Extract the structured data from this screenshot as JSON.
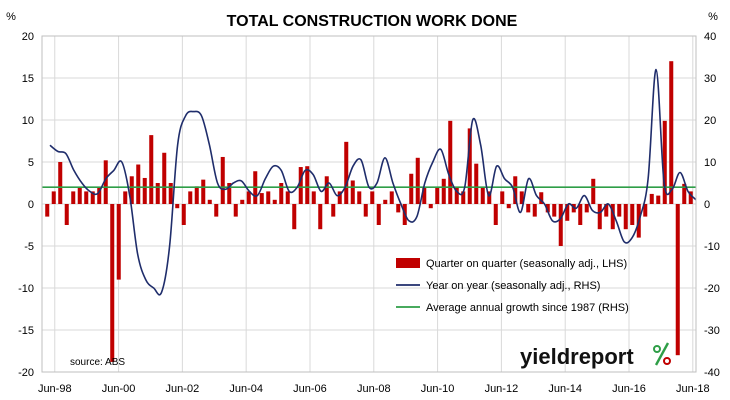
{
  "chart_data": {
    "type": "bar",
    "title": "TOTAL CONSTRUCTION WORK DONE",
    "left_unit": "%",
    "right_unit": "%",
    "ylim_left": [
      -20,
      20
    ],
    "ylim_right": [
      -40,
      40
    ],
    "y_ticks_left": [
      "20",
      "15",
      "10",
      "5",
      "0",
      "-5",
      "-10",
      "-15",
      "-20"
    ],
    "y_ticks_right": [
      "40",
      "30",
      "20",
      "10",
      "0",
      "-10",
      "-20",
      "-30",
      "-40"
    ],
    "x_ticks": [
      "Jun-98",
      "Jun-00",
      "Jun-02",
      "Jun-04",
      "Jun-06",
      "Jun-08",
      "Jun-10",
      "Jun-12",
      "Jun-14",
      "Jun-16",
      "Jun-18"
    ],
    "x_start": "Jun-98",
    "x_end": "Jun-18",
    "grid": true,
    "legend_position": "bottom-right",
    "source": "source: ABS",
    "colors": {
      "bars": "#c00000",
      "line": "#1f2d6b",
      "average": "#2e9e47",
      "grid": "#d9d9d9"
    },
    "series": [
      {
        "name": "Quarter on quarter (seasonally adj., LHS)",
        "type": "bar",
        "axis": "left",
        "values": [
          -1.5,
          1.5,
          5.0,
          -2.5,
          1.5,
          2.0,
          1.5,
          1.5,
          2.0,
          5.2,
          -18.8,
          -9.0,
          1.5,
          3.3,
          4.7,
          3.1,
          8.2,
          2.5,
          6.1,
          2.5,
          -0.5,
          -2.5,
          1.5,
          2.1,
          2.9,
          0.5,
          -1.5,
          5.6,
          2.5,
          -1.5,
          0.5,
          1.5,
          3.9,
          1.3,
          1.5,
          0.5,
          2.5,
          1.5,
          -3.0,
          4.4,
          4.5,
          1.5,
          -3.0,
          3.3,
          -1.5,
          1.5,
          7.4,
          2.8,
          1.5,
          -1.5,
          1.5,
          -2.5,
          0.5,
          1.5,
          -1.0,
          -2.5,
          3.6,
          5.5,
          2.0,
          -0.5,
          2.0,
          3.0,
          9.9,
          2.0,
          1.5,
          9.0,
          4.8,
          2.0,
          1.5,
          -2.5,
          1.5,
          -0.5,
          3.3,
          1.5,
          -1.0,
          -1.5,
          1.4,
          -1.0,
          -1.5,
          -5.0,
          -2.0,
          -1.0,
          -2.5,
          -1.0,
          3.0,
          -3.0,
          -1.5,
          -3.0,
          -1.5,
          -3.0,
          -2.5,
          -4.0,
          -1.5,
          1.2,
          1.0,
          9.9,
          17.0,
          -18.0,
          2.4,
          1.5
        ]
      },
      {
        "name": "Year on year (seasonally adj., RHS)",
        "type": "line",
        "axis": "right",
        "x": [
          1998.25,
          1998.5,
          1998.75,
          1999.0,
          1999.25,
          1999.5,
          1999.75,
          2000.0,
          2000.25,
          2000.5,
          2000.75,
          2001.0,
          2001.25,
          2001.5,
          2001.75,
          2002.0,
          2002.25,
          2002.5,
          2002.75,
          2003.0,
          2003.25,
          2003.5,
          2003.75,
          2004.0,
          2004.25,
          2004.5,
          2004.75,
          2005.0,
          2005.25,
          2005.5,
          2005.75,
          2006.0,
          2006.25,
          2006.5,
          2006.75,
          2007.0,
          2007.25,
          2007.5,
          2007.75,
          2008.0,
          2008.25,
          2008.5,
          2008.75,
          2009.0,
          2009.25,
          2009.5,
          2009.75,
          2010.0,
          2010.25,
          2010.5,
          2010.75,
          2011.0,
          2011.25,
          2011.5,
          2011.75,
          2012.0,
          2012.25,
          2012.5,
          2012.75,
          2013.0,
          2013.25,
          2013.5,
          2013.75,
          2014.0,
          2014.25,
          2014.5,
          2014.75,
          2015.0,
          2015.25,
          2015.5,
          2015.75,
          2016.0,
          2016.25,
          2016.5,
          2016.75,
          2017.0,
          2017.25,
          2017.5,
          2017.75,
          2018.0,
          2018.25,
          2018.5
        ],
        "values": [
          14.0,
          12.5,
          12.0,
          8.0,
          5.0,
          3.0,
          2.5,
          6.0,
          8.0,
          10.0,
          2.0,
          -12.0,
          -18.0,
          -20.0,
          -21.0,
          -10.0,
          14.0,
          21.0,
          22.0,
          21.0,
          14.0,
          5.0,
          3.5,
          5.0,
          5.5,
          3.0,
          2.0,
          6.0,
          9.0,
          8.0,
          3.0,
          4.0,
          8.0,
          7.0,
          3.0,
          5.0,
          2.0,
          4.0,
          9.0,
          10.5,
          4.0,
          5.0,
          11.0,
          5.0,
          0.0,
          -4.0,
          -3.0,
          5.0,
          10.0,
          13.0,
          7.0,
          3.0,
          4.0,
          20.0,
          14.0,
          2.0,
          9.0,
          6.0,
          4.0,
          -2.0,
          6.0,
          2.0,
          0.0,
          -4.0,
          -3.5,
          0.0,
          -1.0,
          2.0,
          -1.5,
          -2.0,
          0.0,
          -4.0,
          -9.0,
          -8.0,
          -3.0,
          6.0,
          32.0,
          5.0,
          3.5,
          7.5,
          3.0,
          1.0
        ]
      },
      {
        "name": "Average annual growth since 1987 (RHS)",
        "type": "line",
        "axis": "right",
        "value": 4.0
      }
    ]
  },
  "logo": {
    "text": "yieldreport",
    "mark": "%"
  }
}
